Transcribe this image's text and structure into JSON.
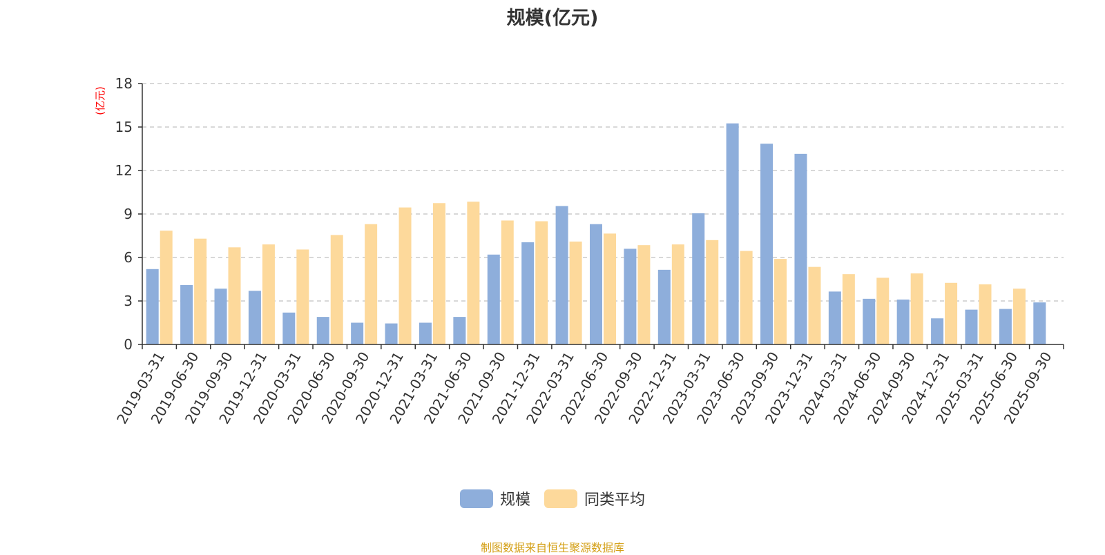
{
  "chart_data": {
    "type": "bar",
    "title": "规模(亿元)",
    "ylabel": "(亿元)",
    "xlabel": "",
    "ylim": [
      0,
      18
    ],
    "yticks": [
      0,
      3,
      6,
      9,
      12,
      15,
      18
    ],
    "grid": true,
    "legend_position": "bottom-center",
    "categories": [
      "2019-03-31",
      "2019-06-30",
      "2019-09-30",
      "2019-12-31",
      "2020-03-31",
      "2020-06-30",
      "2020-09-30",
      "2020-12-31",
      "2021-03-31",
      "2021-06-30",
      "2021-09-30",
      "2021-12-31",
      "2022-03-31",
      "2022-06-30",
      "2022-09-30",
      "2022-12-31",
      "2023-03-31",
      "2023-06-30",
      "2023-09-30",
      "2023-12-31",
      "2024-03-31",
      "2024-06-30",
      "2024-09-30",
      "2024-12-31",
      "2025-03-31",
      "2025-06-30",
      "2025-09-30"
    ],
    "series": [
      {
        "name": "规模",
        "color": "#8eaedb",
        "values": [
          5.2,
          4.1,
          3.85,
          3.7,
          2.2,
          1.9,
          1.5,
          1.45,
          1.5,
          1.9,
          6.2,
          7.05,
          9.55,
          8.3,
          6.6,
          5.15,
          9.05,
          15.25,
          13.85,
          13.15,
          3.65,
          3.15,
          3.1,
          1.8,
          2.4,
          2.45,
          2.9
        ]
      },
      {
        "name": "同类平均",
        "color": "#fdd99b",
        "values": [
          7.85,
          7.3,
          6.7,
          6.9,
          6.55,
          7.55,
          8.3,
          9.45,
          9.75,
          9.85,
          8.55,
          8.5,
          7.1,
          7.65,
          6.85,
          6.9,
          7.2,
          6.45,
          5.9,
          5.35,
          4.85,
          4.6,
          4.9,
          4.25,
          4.15,
          3.85,
          null
        ]
      }
    ]
  },
  "source_note": "制图数据来自恒生聚源数据库",
  "colors": {
    "axis": "#333333",
    "grid": "#cccccc",
    "ylabel": "#ff0000",
    "source": "#d4a017"
  }
}
